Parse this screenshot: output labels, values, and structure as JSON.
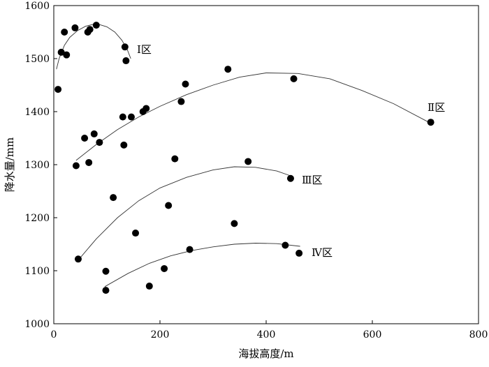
{
  "chart_data": {
    "type": "scatter",
    "title": "",
    "xlabel": "海拔高度/m",
    "ylabel": "降水量/mm",
    "xlim": [
      0,
      800
    ],
    "ylim": [
      1000,
      1600
    ],
    "xticks": [
      "0",
      "200",
      "400",
      "600",
      "800"
    ],
    "yticks": [
      "1000",
      "1100",
      "1200",
      "1300",
      "1400",
      "1500",
      "1600"
    ],
    "grid": false,
    "points": [
      {
        "x": 8,
        "y": 1442
      },
      {
        "x": 14,
        "y": 1512
      },
      {
        "x": 20,
        "y": 1550
      },
      {
        "x": 24,
        "y": 1507
      },
      {
        "x": 40,
        "y": 1558
      },
      {
        "x": 64,
        "y": 1550
      },
      {
        "x": 68,
        "y": 1555
      },
      {
        "x": 80,
        "y": 1563
      },
      {
        "x": 134,
        "y": 1522
      },
      {
        "x": 136,
        "y": 1496
      },
      {
        "x": 42,
        "y": 1298
      },
      {
        "x": 58,
        "y": 1350
      },
      {
        "x": 66,
        "y": 1304
      },
      {
        "x": 76,
        "y": 1358
      },
      {
        "x": 86,
        "y": 1342
      },
      {
        "x": 130,
        "y": 1390
      },
      {
        "x": 132,
        "y": 1337
      },
      {
        "x": 146,
        "y": 1390
      },
      {
        "x": 168,
        "y": 1400
      },
      {
        "x": 174,
        "y": 1406
      },
      {
        "x": 240,
        "y": 1419
      },
      {
        "x": 248,
        "y": 1452
      },
      {
        "x": 328,
        "y": 1480
      },
      {
        "x": 452,
        "y": 1462
      },
      {
        "x": 710,
        "y": 1380
      },
      {
        "x": 112,
        "y": 1238
      },
      {
        "x": 216,
        "y": 1223
      },
      {
        "x": 228,
        "y": 1311
      },
      {
        "x": 366,
        "y": 1306
      },
      {
        "x": 446,
        "y": 1274
      },
      {
        "x": 46,
        "y": 1122
      },
      {
        "x": 154,
        "y": 1171
      },
      {
        "x": 340,
        "y": 1189
      },
      {
        "x": 98,
        "y": 1063
      },
      {
        "x": 98,
        "y": 1099
      },
      {
        "x": 180,
        "y": 1071
      },
      {
        "x": 208,
        "y": 1104
      },
      {
        "x": 256,
        "y": 1140
      },
      {
        "x": 436,
        "y": 1148
      },
      {
        "x": 462,
        "y": 1133
      }
    ],
    "series": [
      {
        "name": "Ⅰ区",
        "curve": [
          [
            5,
            1480
          ],
          [
            10,
            1500
          ],
          [
            20,
            1525
          ],
          [
            30,
            1540
          ],
          [
            45,
            1553
          ],
          [
            60,
            1561
          ],
          [
            80,
            1566
          ],
          [
            100,
            1560
          ],
          [
            115,
            1550
          ],
          [
            128,
            1535
          ],
          [
            138,
            1518
          ],
          [
            145,
            1500
          ]
        ]
      },
      {
        "name": "Ⅱ区",
        "curve": [
          [
            42,
            1308
          ],
          [
            80,
            1338
          ],
          [
            120,
            1366
          ],
          [
            160,
            1390
          ],
          [
            200,
            1410
          ],
          [
            250,
            1432
          ],
          [
            300,
            1450
          ],
          [
            350,
            1465
          ],
          [
            400,
            1473
          ],
          [
            460,
            1472
          ],
          [
            520,
            1462
          ],
          [
            580,
            1440
          ],
          [
            640,
            1415
          ],
          [
            710,
            1378
          ]
        ]
      },
      {
        "name": "Ⅲ区",
        "curve": [
          [
            46,
            1120
          ],
          [
            80,
            1160
          ],
          [
            120,
            1200
          ],
          [
            160,
            1232
          ],
          [
            200,
            1256
          ],
          [
            250,
            1276
          ],
          [
            300,
            1290
          ],
          [
            340,
            1296
          ],
          [
            380,
            1295
          ],
          [
            420,
            1288
          ],
          [
            446,
            1279
          ]
        ]
      },
      {
        "name": "Ⅳ区",
        "curve": [
          [
            96,
            1070
          ],
          [
            140,
            1095
          ],
          [
            180,
            1114
          ],
          [
            220,
            1128
          ],
          [
            260,
            1138
          ],
          [
            300,
            1145
          ],
          [
            340,
            1150
          ],
          [
            380,
            1152
          ],
          [
            420,
            1151
          ],
          [
            464,
            1146
          ]
        ]
      }
    ]
  }
}
